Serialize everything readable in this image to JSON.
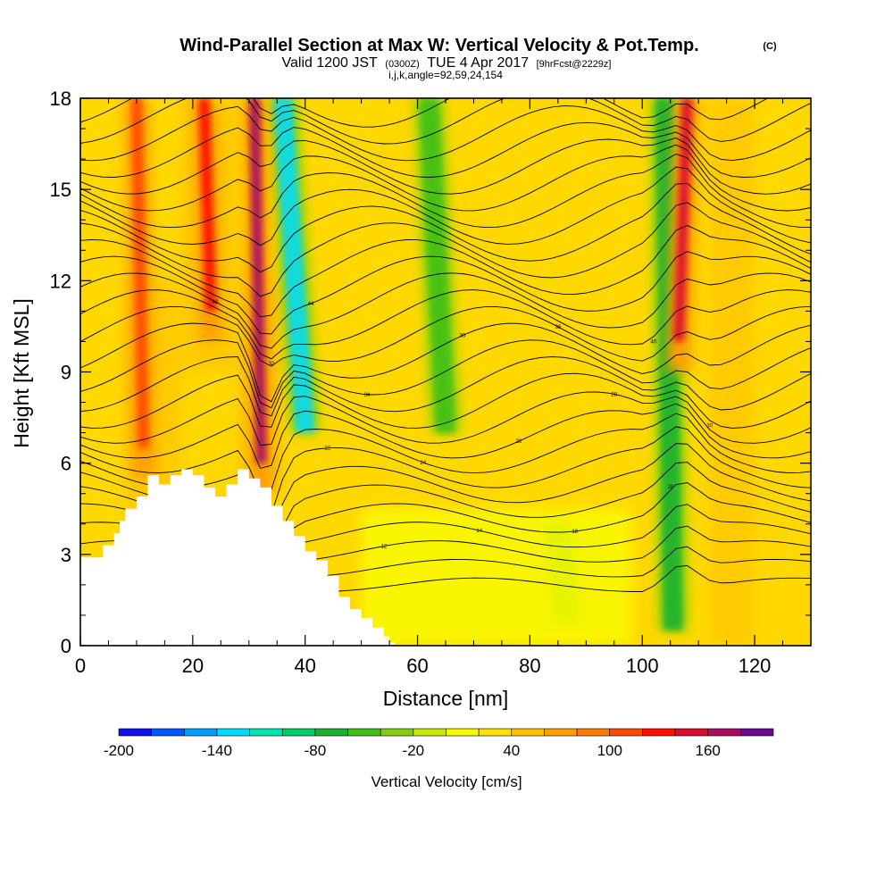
{
  "chart_data": {
    "type": "heatmap",
    "title": "Wind-Parallel Section at Max W: Vertical Velocity & Pot.Temp.",
    "title_mark": "(C)",
    "subtitle": {
      "prefix": "Valid 1200 JST",
      "utc": "(0300Z)",
      "date": "TUE 4 Apr 2017",
      "forecast": "[9hrFcst@2229z]"
    },
    "params": "i,j,k,angle=92,59,24,154",
    "xlabel": "Distance [nm]",
    "ylabel": "Height [Kft MSL]",
    "xlim": [
      0,
      130
    ],
    "ylim": [
      0,
      18
    ],
    "x_ticks": [
      "0",
      "20",
      "40",
      "60",
      "80",
      "100",
      "120"
    ],
    "y_ticks": [
      "0",
      "3",
      "6",
      "9",
      "12",
      "15",
      "18"
    ],
    "colorbar": {
      "label": "Vertical Velocity [cm/s]",
      "levels": [
        -200,
        -180,
        -160,
        -140,
        -120,
        -100,
        -80,
        -60,
        -40,
        -20,
        0,
        20,
        40,
        60,
        80,
        100,
        120,
        140,
        160,
        180
      ],
      "colors": [
        "#1010ee",
        "#0058ff",
        "#009cff",
        "#00dcff",
        "#00e6b0",
        "#00cc66",
        "#18b030",
        "#40bf18",
        "#80d010",
        "#c8e800",
        "#f8fa00",
        "#ffe000",
        "#ffc000",
        "#ffa000",
        "#ff7800",
        "#ff4a00",
        "#ff1000",
        "#dc0c30",
        "#a80c60",
        "#6a0890"
      ],
      "tick_labels": [
        "-200",
        "-140",
        "-80",
        "-20",
        "40",
        "100",
        "160"
      ]
    },
    "terrain_kft": [
      [
        0,
        2.9
      ],
      [
        4,
        3.3
      ],
      [
        6,
        3.7
      ],
      [
        7,
        4.1
      ],
      [
        8,
        4.5
      ],
      [
        10,
        4.9
      ],
      [
        12,
        5.6
      ],
      [
        14,
        5.3
      ],
      [
        16,
        5.6
      ],
      [
        18,
        5.8
      ],
      [
        20,
        5.6
      ],
      [
        22,
        5.2
      ],
      [
        24,
        4.9
      ],
      [
        26,
        5.3
      ],
      [
        28,
        5.8
      ],
      [
        30,
        5.5
      ],
      [
        32,
        5.2
      ],
      [
        34,
        4.6
      ],
      [
        36,
        4.1
      ],
      [
        38,
        3.6
      ],
      [
        40,
        3.1
      ],
      [
        42,
        2.8
      ],
      [
        44,
        2.3
      ],
      [
        46,
        1.6
      ],
      [
        48,
        1.2
      ],
      [
        50,
        0.9
      ],
      [
        52,
        0.6
      ],
      [
        54,
        0.3
      ],
      [
        55,
        0.1
      ],
      [
        56,
        0
      ]
    ],
    "updraft_cores": [
      {
        "x": 10,
        "w": 100,
        "z_bottom": 5.5
      },
      {
        "x": 22,
        "w": 120,
        "z_bottom": 10
      },
      {
        "x": 31,
        "w": 160,
        "z_bottom": 5.0
      },
      {
        "x": 108,
        "w": 150,
        "z_bottom": 9
      }
    ],
    "downdraft_bands": [
      {
        "x": 36,
        "w": -140,
        "z_top": 18
      },
      {
        "x": 62,
        "w": -60,
        "z_top": 18
      },
      {
        "x": 85,
        "w": -40,
        "z_top": 4
      },
      {
        "x": 104,
        "w": -80,
        "z_top": 18
      }
    ],
    "theta_contour_labels": [
      "8",
      "10",
      "12",
      "14",
      "16",
      "18",
      "20",
      "22",
      "24",
      "26",
      "28",
      "30",
      "32",
      "34",
      "36",
      "38",
      "40",
      "42",
      "44"
    ]
  }
}
